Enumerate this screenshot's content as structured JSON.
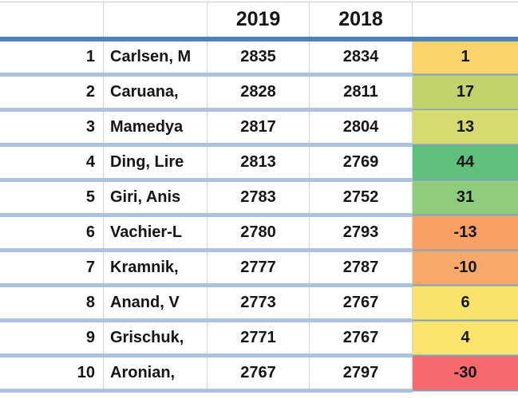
{
  "header": {
    "blank_a": "",
    "blank_b": "",
    "col_2019": "2019",
    "col_2018": "2018",
    "blank_c": ""
  },
  "colors": {
    "header_line": "#4F81BD",
    "row_separator": "#AAC4E0",
    "gridline": "#D6D6D6",
    "separator_line_over_color": "#7FA3BE",
    "text": "#151515"
  },
  "rows": [
    {
      "rank": "1",
      "player": "Carlsen, M",
      "rating_2019": "2835",
      "rating_2018": "2834",
      "diff": "1",
      "diff_color": "#FBD46B"
    },
    {
      "rank": "2",
      "player": "Caruana,",
      "rating_2019": "2828",
      "rating_2018": "2811",
      "diff": "17",
      "diff_color": "#C2D36E"
    },
    {
      "rank": "3",
      "player": "Mamedya",
      "rating_2019": "2817",
      "rating_2018": "2804",
      "diff": "13",
      "diff_color": "#D7DA6E"
    },
    {
      "rank": "4",
      "player": "Ding, Lire",
      "rating_2019": "2813",
      "rating_2018": "2769",
      "diff": "44",
      "diff_color": "#5FBF7C"
    },
    {
      "rank": "5",
      "player": "Giri, Anis",
      "rating_2019": "2783",
      "rating_2018": "2752",
      "diff": "31",
      "diff_color": "#90CC7D"
    },
    {
      "rank": "6",
      "player": "Vachier-L",
      "rating_2019": "2780",
      "rating_2018": "2793",
      "diff": "-13",
      "diff_color": "#F9A066"
    },
    {
      "rank": "7",
      "player": "Kramnik,",
      "rating_2019": "2777",
      "rating_2018": "2787",
      "diff": "-10",
      "diff_color": "#F9A86C"
    },
    {
      "rank": "8",
      "player": "Anand, V",
      "rating_2019": "2773",
      "rating_2018": "2767",
      "diff": "6",
      "diff_color": "#FBE26C"
    },
    {
      "rank": "9",
      "player": "Grischuk,",
      "rating_2019": "2771",
      "rating_2018": "2767",
      "diff": "4",
      "diff_color": "#FAE46E"
    },
    {
      "rank": "10",
      "player": "Aronian,",
      "rating_2019": "2767",
      "rating_2018": "2797",
      "diff": "-30",
      "diff_color": "#F7696C"
    }
  ]
}
